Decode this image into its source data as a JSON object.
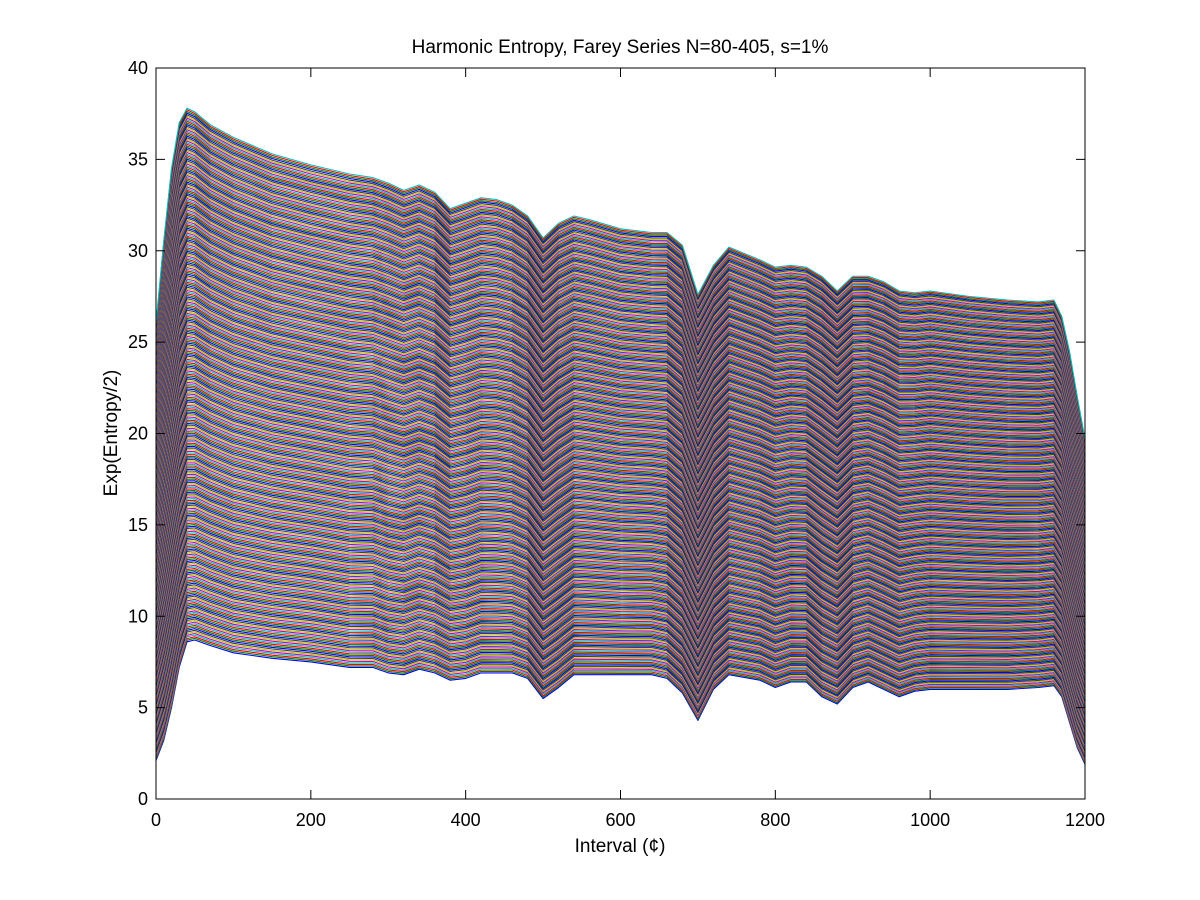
{
  "chart_data": {
    "type": "line",
    "title": "Harmonic Entropy, Farey Series N=80-405, s=1%",
    "xlabel": "Interval (¢)",
    "ylabel": "Exp(Entropy/2)",
    "xlim": [
      0,
      1200
    ],
    "ylim": [
      0,
      40
    ],
    "xticks": [
      0,
      200,
      400,
      600,
      800,
      1000,
      1200
    ],
    "yticks": [
      0,
      5,
      10,
      15,
      20,
      25,
      30,
      35,
      40
    ],
    "grid": false,
    "legend": "none",
    "series_count": 326,
    "series_range": {
      "N_min": 80,
      "N_max": 405
    },
    "lower_envelope": {
      "x": [
        0,
        10,
        20,
        30,
        40,
        50,
        70,
        100,
        150,
        200,
        250,
        280,
        300,
        320,
        340,
        360,
        380,
        400,
        420,
        440,
        460,
        480,
        500,
        520,
        540,
        560,
        600,
        640,
        660,
        680,
        700,
        720,
        740,
        780,
        800,
        820,
        840,
        860,
        880,
        900,
        920,
        940,
        960,
        980,
        1000,
        1050,
        1100,
        1140,
        1160,
        1170,
        1180,
        1190,
        1200
      ],
      "y": [
        2.1,
        3.2,
        5.0,
        7.2,
        8.6,
        8.7,
        8.4,
        8.0,
        7.7,
        7.5,
        7.2,
        7.2,
        6.9,
        6.8,
        7.1,
        6.9,
        6.5,
        6.6,
        6.9,
        6.9,
        6.9,
        6.6,
        5.5,
        6.1,
        6.8,
        6.8,
        6.8,
        6.8,
        6.6,
        5.8,
        4.3,
        6.0,
        6.8,
        6.5,
        6.1,
        6.4,
        6.4,
        5.6,
        5.2,
        6.1,
        6.4,
        6.0,
        5.6,
        5.9,
        6.0,
        6.0,
        6.0,
        6.1,
        6.2,
        5.6,
        4.2,
        2.8,
        1.9
      ]
    },
    "upper_envelope": {
      "x": [
        0,
        10,
        20,
        30,
        40,
        50,
        70,
        100,
        150,
        200,
        250,
        280,
        300,
        320,
        340,
        360,
        380,
        400,
        420,
        440,
        460,
        480,
        500,
        520,
        540,
        560,
        600,
        640,
        660,
        680,
        700,
        720,
        740,
        780,
        800,
        820,
        840,
        860,
        880,
        900,
        920,
        940,
        960,
        980,
        1000,
        1050,
        1100,
        1140,
        1160,
        1170,
        1180,
        1190,
        1200
      ],
      "y": [
        26.0,
        30.5,
        34.5,
        37.0,
        37.8,
        37.6,
        36.9,
        36.2,
        35.3,
        34.7,
        34.2,
        34.0,
        33.7,
        33.3,
        33.6,
        33.2,
        32.3,
        32.6,
        32.9,
        32.8,
        32.5,
        31.9,
        30.7,
        31.5,
        31.9,
        31.7,
        31.2,
        31.0,
        31.0,
        30.3,
        27.6,
        29.2,
        30.2,
        29.5,
        29.1,
        29.2,
        29.1,
        28.6,
        27.8,
        28.6,
        28.6,
        28.3,
        27.8,
        27.7,
        27.8,
        27.5,
        27.3,
        27.2,
        27.3,
        26.4,
        24.5,
        22.0,
        19.7
      ]
    }
  }
}
